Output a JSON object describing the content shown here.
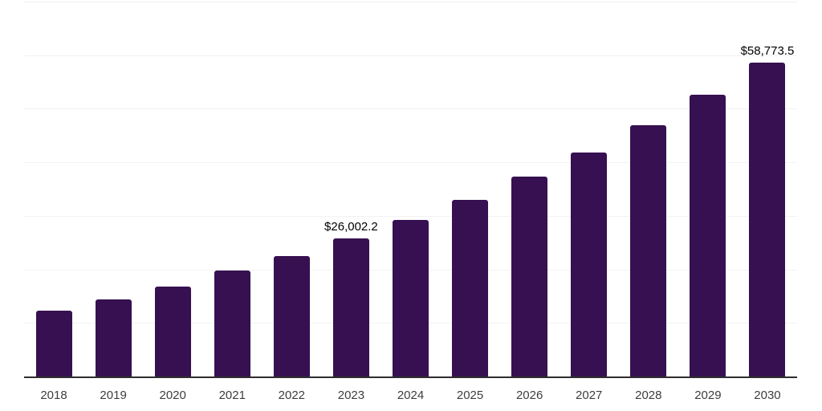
{
  "chart_data": {
    "type": "bar",
    "title": "",
    "xlabel": "",
    "ylabel": "",
    "categories": [
      "2018",
      "2019",
      "2020",
      "2021",
      "2022",
      "2023",
      "2024",
      "2025",
      "2026",
      "2027",
      "2028",
      "2029",
      "2030"
    ],
    "values": [
      12500,
      14500,
      17000,
      19900,
      22700,
      26002.2,
      29400,
      33200,
      37500,
      42000,
      47100,
      52700,
      58773.5
    ],
    "data_labels": {
      "2023": "$26,002.2",
      "2030": "$58,773.5"
    },
    "ylim": [
      0,
      70000
    ],
    "gridline_step": 10000,
    "grid": "horizontal-only",
    "y_axis_tick_labels": "none",
    "legend": "none"
  },
  "colors": {
    "bar": "#361050",
    "gridline": "#f2f2f2",
    "axis_line": "#2e2e2e",
    "tick_label_text": "#3d3d3d",
    "data_label_text": "#000000",
    "background": "#ffffff"
  }
}
